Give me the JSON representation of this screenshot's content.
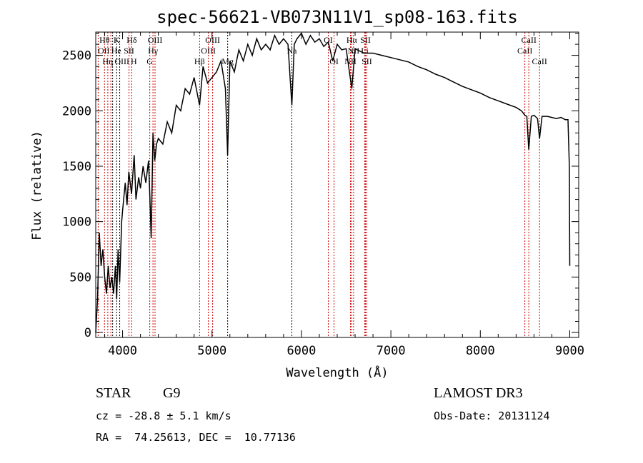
{
  "chart_data": {
    "type": "line",
    "title": "spec-56621-VB073N11V1_sp08-163.fits",
    "xlabel": "Wavelength (Å)",
    "ylabel": "Flux (relative)",
    "xlim": [
      3700,
      9100
    ],
    "ylim": [
      -45,
      2710
    ],
    "xticks": [
      4000,
      5000,
      6000,
      7000,
      8000,
      9000
    ],
    "yticks": [
      0,
      500,
      1000,
      1500,
      2000,
      2500
    ],
    "series": [
      {
        "name": "spectrum",
        "x": [
          3700,
          3720,
          3740,
          3760,
          3780,
          3800,
          3820,
          3840,
          3860,
          3880,
          3900,
          3920,
          3934,
          3950,
          3968,
          3990,
          4000,
          4030,
          4050,
          4070,
          4100,
          4130,
          4150,
          4180,
          4200,
          4230,
          4260,
          4290,
          4304,
          4320,
          4340,
          4360,
          4380,
          4400,
          4450,
          4500,
          4550,
          4600,
          4650,
          4700,
          4750,
          4800,
          4861,
          4900,
          4950,
          5000,
          5050,
          5100,
          5150,
          5175,
          5200,
          5250,
          5300,
          5350,
          5400,
          5450,
          5500,
          5550,
          5600,
          5650,
          5700,
          5750,
          5800,
          5850,
          5893,
          5920,
          5950,
          6000,
          6050,
          6100,
          6150,
          6200,
          6250,
          6300,
          6350,
          6400,
          6450,
          6500,
          6563,
          6600,
          6650,
          6700,
          6800,
          6900,
          7000,
          7100,
          7200,
          7300,
          7400,
          7500,
          7600,
          7700,
          7800,
          7900,
          8000,
          8100,
          8200,
          8300,
          8400,
          8460,
          8498,
          8520,
          8542,
          8570,
          8600,
          8640,
          8662,
          8690,
          8750,
          8800,
          8850,
          8900,
          8950,
          8980,
          8995,
          9000
        ],
        "y": [
          0,
          300,
          900,
          600,
          750,
          500,
          350,
          600,
          400,
          500,
          350,
          600,
          300,
          750,
          450,
          1000,
          1100,
          1350,
          1150,
          1450,
          1250,
          1600,
          1200,
          1400,
          1300,
          1500,
          1350,
          1550,
          1250,
          850,
          1800,
          1550,
          1700,
          1750,
          1700,
          1900,
          1800,
          2050,
          2000,
          2200,
          2150,
          2300,
          2050,
          2400,
          2250,
          2300,
          2350,
          2450,
          2200,
          1600,
          2450,
          2350,
          2550,
          2450,
          2600,
          2500,
          2650,
          2550,
          2600,
          2550,
          2680,
          2600,
          2650,
          2600,
          2050,
          2600,
          2650,
          2700,
          2600,
          2680,
          2620,
          2650,
          2580,
          2620,
          2450,
          2600,
          2550,
          2560,
          2200,
          2560,
          2540,
          2520,
          2520,
          2500,
          2480,
          2460,
          2440,
          2400,
          2370,
          2330,
          2300,
          2260,
          2220,
          2190,
          2160,
          2120,
          2090,
          2060,
          2030,
          2000,
          1960,
          1950,
          1650,
          1950,
          1960,
          1930,
          1750,
          1950,
          1950,
          1940,
          1930,
          1940,
          1920,
          1920,
          1500,
          600
        ]
      }
    ],
    "lines": [
      {
        "wl": 3727,
        "label": "OII",
        "row": 2,
        "color": "#d00000"
      },
      {
        "wl": 3798,
        "label": "Hθ",
        "row": 1,
        "color": "#d00000"
      },
      {
        "wl": 3835,
        "label": "Hη",
        "row": 3,
        "color": "#d00000"
      },
      {
        "wl": 3869,
        "label": "OIII",
        "row": 3,
        "color": "#d00000"
      },
      {
        "wl": 3889,
        "label": "He",
        "row": 2,
        "color": "#000000"
      },
      {
        "wl": 3934,
        "label": "K",
        "row": 1,
        "color": "#000000"
      },
      {
        "wl": 3968,
        "label": "H",
        "row": 3,
        "color": "#000000"
      },
      {
        "wl": 4072,
        "label": "SII",
        "row": 2,
        "color": "#d00000"
      },
      {
        "wl": 4102,
        "label": "Hδ",
        "row": 1,
        "color": "#d00000"
      },
      {
        "wl": 4304,
        "label": "G",
        "row": 3,
        "color": "#d00000"
      },
      {
        "wl": 4340,
        "label": "Hγ",
        "row": 2,
        "color": "#d00000"
      },
      {
        "wl": 4363,
        "label": "OIII",
        "row": 1,
        "color": "#d00000"
      },
      {
        "wl": 4861,
        "label": "Hβ",
        "row": 3,
        "color": "#d00000"
      },
      {
        "wl": 4959,
        "label": "OIII",
        "row": 2,
        "color": "#d00000"
      },
      {
        "wl": 5007,
        "label": "OIII",
        "row": 1,
        "color": "#d00000"
      },
      {
        "wl": 5175,
        "label": "Mg",
        "row": 3,
        "color": "#000000"
      },
      {
        "wl": 5893,
        "label": "Na",
        "row": 2,
        "color": "#000000"
      },
      {
        "wl": 6300,
        "label": "OI",
        "row": 1,
        "color": "#d00000"
      },
      {
        "wl": 6364,
        "label": "OI",
        "row": 3,
        "color": "#d00000"
      },
      {
        "wl": 6548,
        "label": "NII",
        "row": 3,
        "color": "#d00000"
      },
      {
        "wl": 6563,
        "label": "Hα",
        "row": 1,
        "color": "#d00000"
      },
      {
        "wl": 6583,
        "label": "NII",
        "row": 2,
        "color": "#d00000"
      },
      {
        "wl": 6707,
        "label": "Li",
        "row": 2,
        "color": "#d00000"
      },
      {
        "wl": 6716,
        "label": "SII",
        "row": 1,
        "color": "#d00000"
      },
      {
        "wl": 6731,
        "label": "SII",
        "row": 3,
        "color": "#d00000"
      },
      {
        "wl": 8498,
        "label": "CaII",
        "row": 2,
        "color": "#d00000"
      },
      {
        "wl": 8542,
        "label": "CaII",
        "row": 1,
        "color": "#d00000"
      },
      {
        "wl": 8662,
        "label": "CaII",
        "row": 3,
        "color": "#d00000"
      }
    ]
  },
  "info": {
    "object_class": "STAR",
    "subclass": "G9",
    "survey": "LAMOST DR3",
    "cz": "cz = -28.8 ± 5.1 km/s",
    "obs_date": "Obs-Date: 20131124",
    "coords": "RA =  74.25613, DEC =  10.77136"
  }
}
